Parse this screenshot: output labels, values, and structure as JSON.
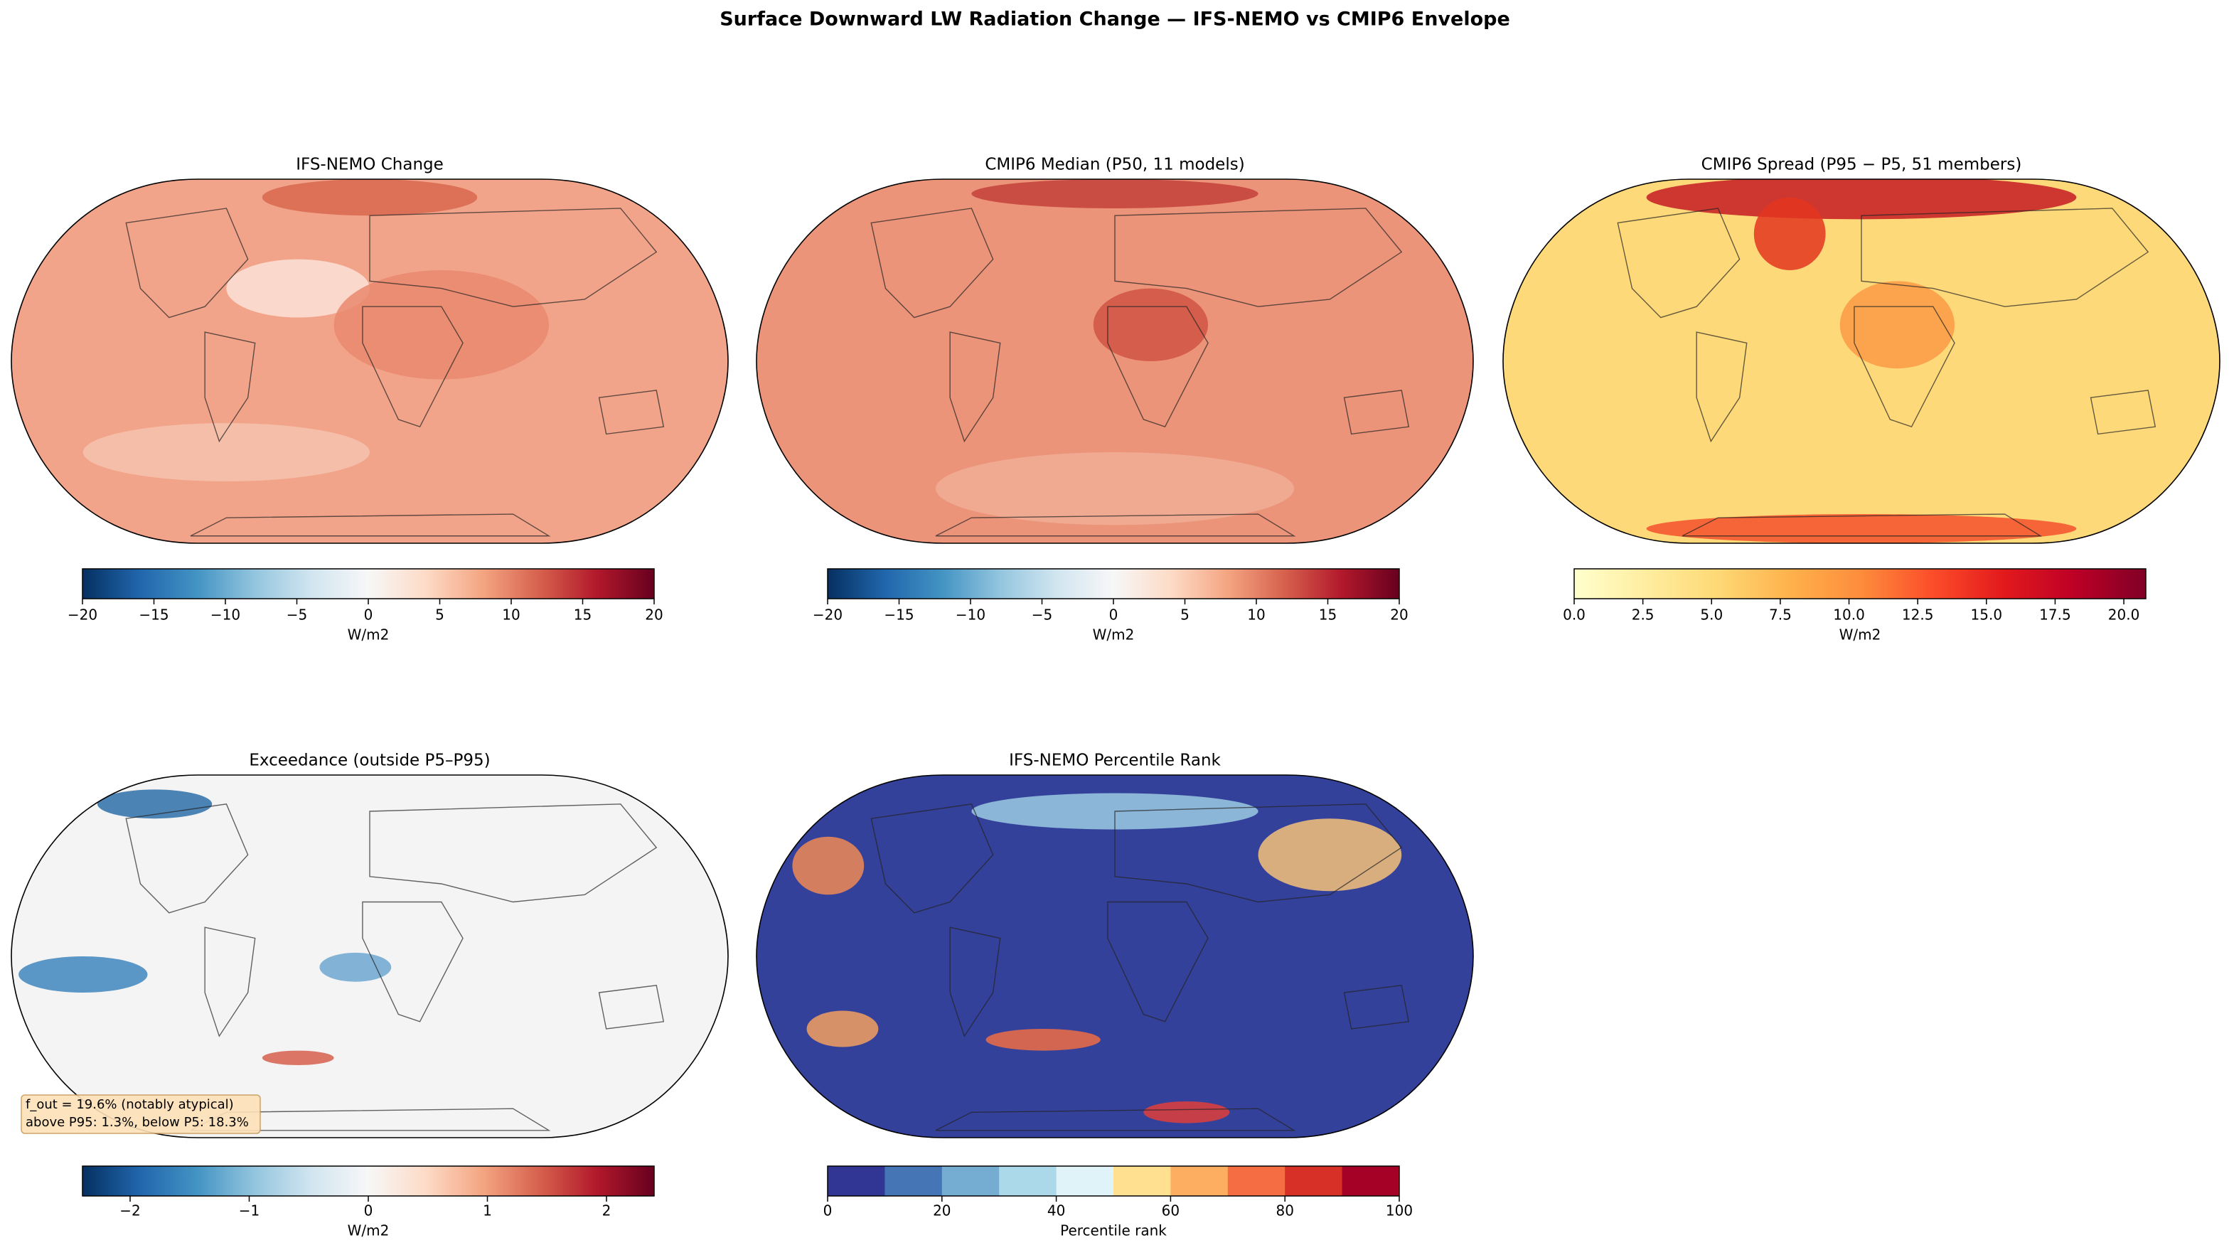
{
  "title": "Surface Downward LW Radiation Change — IFS-NEMO vs CMIP6 Envelope",
  "chart_data": [
    {
      "type": "map",
      "title": "IFS-NEMO Change",
      "colorbar": {
        "label": "W/m2",
        "lim": [
          -20,
          20
        ],
        "ticks": [
          {
            "value": -20,
            "label": "−20"
          },
          {
            "value": -15,
            "label": "−15"
          },
          {
            "value": -10,
            "label": "−10"
          },
          {
            "value": -5,
            "label": "−5"
          },
          0,
          5,
          10,
          15,
          20
        ],
        "colors": [
          "#053061",
          "#2166ac",
          "#4393c3",
          "#92c5de",
          "#d1e5f0",
          "#f7f7f7",
          "#fddbc7",
          "#f4a582",
          "#d6604d",
          "#b2182b",
          "#67001f"
        ],
        "discrete": false
      }
    },
    {
      "type": "map",
      "title": "CMIP6 Median (P50, 11 models)",
      "colorbar": {
        "label": "W/m2",
        "lim": [
          -20,
          20
        ],
        "ticks": [
          {
            "value": -20,
            "label": "−20"
          },
          {
            "value": -15,
            "label": "−15"
          },
          {
            "value": -10,
            "label": "−10"
          },
          {
            "value": -5,
            "label": "−5"
          },
          0,
          5,
          10,
          15,
          20
        ],
        "colors": [
          "#053061",
          "#2166ac",
          "#4393c3",
          "#92c5de",
          "#d1e5f0",
          "#f7f7f7",
          "#fddbc7",
          "#f4a582",
          "#d6604d",
          "#b2182b",
          "#67001f"
        ],
        "discrete": false
      }
    },
    {
      "type": "map",
      "title": "CMIP6 Spread (P95 − P5, 51 members)",
      "colorbar": {
        "label": "W/m2",
        "lim": [
          0,
          20.8
        ],
        "ticks": [
          {
            "value": 0,
            "label": "0.0"
          },
          2.5,
          {
            "value": 5,
            "label": "5.0"
          },
          7.5,
          {
            "value": 10,
            "label": "10.0"
          },
          12.5,
          {
            "value": 15,
            "label": "15.0"
          },
          17.5,
          {
            "value": 20,
            "label": "20.0"
          }
        ],
        "colors": [
          "#ffffcc",
          "#ffeda0",
          "#fed976",
          "#feb24c",
          "#fd8d3c",
          "#fc4e2a",
          "#e31a1c",
          "#bd0026",
          "#800026"
        ],
        "discrete": false
      }
    },
    {
      "type": "map",
      "title": "Exceedance (outside P5–P95)",
      "annotation": [
        "f_out = 19.6% (notably atypical)",
        "above P95: 1.3%, below P5: 18.3%"
      ],
      "colorbar": {
        "label": "W/m2",
        "lim": [
          -2.4,
          2.4
        ],
        "ticks": [
          {
            "value": -2,
            "label": "−2"
          },
          {
            "value": -1,
            "label": "−1"
          },
          0,
          1,
          2
        ],
        "colors": [
          "#053061",
          "#2166ac",
          "#4393c3",
          "#92c5de",
          "#d1e5f0",
          "#f7f7f7",
          "#fddbc7",
          "#f4a582",
          "#d6604d",
          "#b2182b",
          "#67001f"
        ],
        "discrete": false
      }
    },
    {
      "type": "map",
      "title": "IFS-NEMO Percentile Rank",
      "colorbar": {
        "label": "Percentile rank",
        "lim": [
          0,
          100
        ],
        "ticks": [
          0,
          20,
          40,
          60,
          80,
          100
        ],
        "colors": [
          "#313695",
          "#4575b4",
          "#74add1",
          "#abd9e9",
          "#e0f3f8",
          "#fee090",
          "#fdae61",
          "#f46d43",
          "#d73027",
          "#a50026"
        ],
        "discrete": true
      }
    }
  ]
}
